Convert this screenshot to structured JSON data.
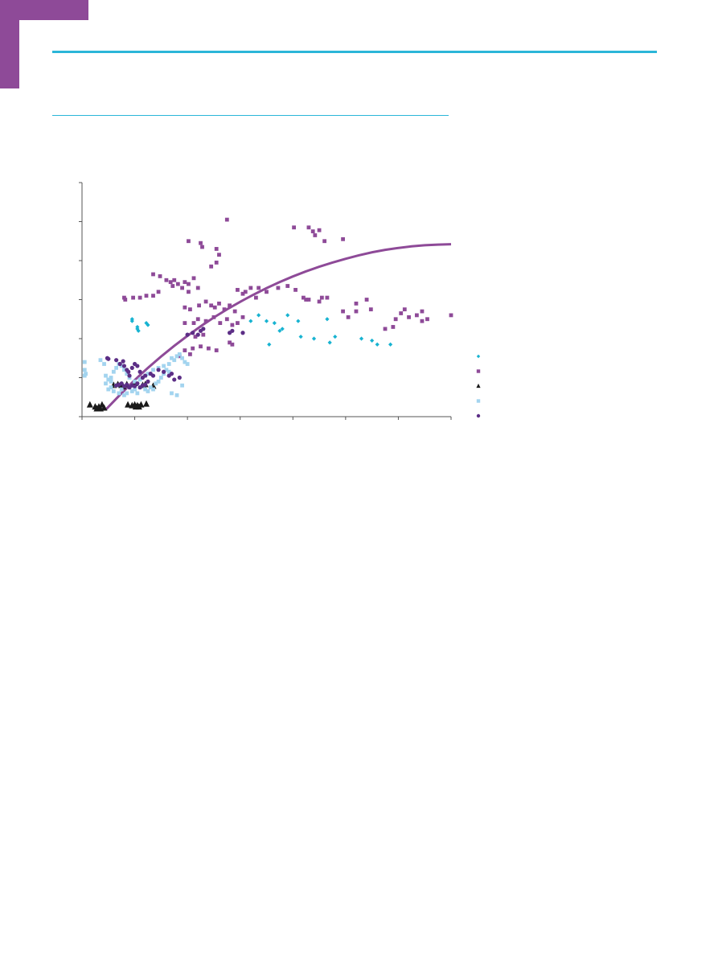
{
  "colors": {
    "accent_purple": "#8e4a98",
    "accent_cyan": "#2bb6d8",
    "series_cyan": "#17b3d1",
    "series_purple": "#8e4a98",
    "series_black": "#1a1a1a",
    "series_lightblue": "#a3d4ef",
    "series_darkpurple": "#5c2e86",
    "axis": "#555555"
  },
  "chart_data": {
    "type": "scatter",
    "xlim": [
      0,
      7
    ],
    "ylim": [
      0,
      6
    ],
    "x_ticks": [
      0,
      1,
      2,
      3,
      4,
      5,
      6,
      7
    ],
    "y_ticks": [
      0,
      1,
      2,
      3,
      4,
      5,
      6
    ],
    "title": "",
    "xlabel": "",
    "ylabel": "",
    "grid": false,
    "legend": "right",
    "series": [
      {
        "marker": "diamond",
        "color": "#17b3d1",
        "points": [
          [
            0.95,
            2.5
          ],
          [
            0.95,
            2.45
          ],
          [
            1.05,
            2.3
          ],
          [
            1.05,
            2.25
          ],
          [
            1.07,
            2.2
          ],
          [
            1.22,
            2.4
          ],
          [
            1.25,
            2.35
          ],
          [
            3.5,
            2.45
          ],
          [
            3.55,
            1.85
          ],
          [
            3.65,
            2.4
          ],
          [
            3.75,
            2.2
          ],
          [
            3.8,
            2.25
          ],
          [
            4.1,
            2.45
          ],
          [
            4.15,
            2.05
          ],
          [
            4.4,
            2.0
          ],
          [
            4.65,
            2.5
          ],
          [
            4.7,
            1.9
          ],
          [
            4.8,
            2.05
          ],
          [
            5.3,
            2.0
          ],
          [
            5.5,
            1.95
          ],
          [
            5.6,
            1.85
          ],
          [
            5.85,
            1.85
          ],
          [
            3.9,
            2.6
          ],
          [
            3.2,
            2.45
          ],
          [
            3.35,
            2.6
          ]
        ]
      },
      {
        "marker": "square",
        "color": "#8e4a98",
        "points": [
          [
            0.8,
            3.05
          ],
          [
            0.82,
            3.0
          ],
          [
            0.97,
            3.05
          ],
          [
            1.1,
            3.05
          ],
          [
            1.22,
            3.1
          ],
          [
            1.35,
            3.1
          ],
          [
            1.45,
            3.2
          ],
          [
            1.35,
            3.65
          ],
          [
            1.48,
            3.6
          ],
          [
            1.6,
            3.5
          ],
          [
            1.68,
            3.45
          ],
          [
            1.72,
            3.35
          ],
          [
            1.75,
            3.5
          ],
          [
            1.82,
            3.4
          ],
          [
            1.95,
            3.45
          ],
          [
            2.02,
            3.4
          ],
          [
            2.12,
            3.55
          ],
          [
            1.9,
            3.3
          ],
          [
            2.02,
            3.2
          ],
          [
            2.2,
            3.3
          ],
          [
            1.95,
            2.8
          ],
          [
            2.05,
            2.75
          ],
          [
            2.22,
            2.85
          ],
          [
            2.35,
            2.95
          ],
          [
            2.45,
            2.85
          ],
          [
            2.52,
            2.8
          ],
          [
            2.6,
            2.9
          ],
          [
            2.7,
            2.75
          ],
          [
            2.8,
            2.85
          ],
          [
            2.9,
            2.7
          ],
          [
            2.2,
            2.5
          ],
          [
            2.35,
            2.45
          ],
          [
            2.5,
            2.55
          ],
          [
            2.62,
            2.4
          ],
          [
            2.75,
            2.5
          ],
          [
            2.85,
            2.35
          ],
          [
            2.95,
            2.4
          ],
          [
            3.05,
            2.55
          ],
          [
            2.12,
            2.4
          ],
          [
            1.95,
            2.4
          ],
          [
            2.02,
            4.5
          ],
          [
            2.25,
            4.45
          ],
          [
            2.28,
            4.35
          ],
          [
            2.45,
            3.85
          ],
          [
            2.55,
            3.95
          ],
          [
            2.6,
            4.15
          ],
          [
            2.55,
            4.3
          ],
          [
            2.75,
            5.05
          ],
          [
            2.95,
            3.25
          ],
          [
            3.05,
            3.15
          ],
          [
            3.2,
            3.3
          ],
          [
            3.35,
            3.3
          ],
          [
            3.5,
            3.2
          ],
          [
            3.3,
            3.05
          ],
          [
            3.1,
            3.2
          ],
          [
            3.72,
            3.3
          ],
          [
            3.9,
            3.35
          ],
          [
            4.05,
            3.25
          ],
          [
            4.2,
            3.05
          ],
          [
            4.3,
            3.0
          ],
          [
            4.5,
            2.95
          ],
          [
            4.55,
            3.05
          ],
          [
            4.25,
            3.0
          ],
          [
            4.02,
            4.85
          ],
          [
            4.3,
            4.85
          ],
          [
            4.38,
            4.75
          ],
          [
            4.42,
            4.65
          ],
          [
            4.5,
            4.78
          ],
          [
            4.6,
            4.5
          ],
          [
            4.95,
            4.55
          ],
          [
            4.65,
            3.05
          ],
          [
            5.05,
            2.55
          ],
          [
            5.2,
            2.9
          ],
          [
            5.4,
            3.0
          ],
          [
            5.48,
            2.75
          ],
          [
            5.9,
            2.3
          ],
          [
            6.05,
            2.65
          ],
          [
            6.12,
            2.75
          ],
          [
            6.2,
            2.55
          ],
          [
            6.35,
            2.6
          ],
          [
            6.45,
            2.45
          ],
          [
            6.55,
            2.5
          ],
          [
            6.45,
            2.7
          ],
          [
            7.0,
            2.6
          ],
          [
            5.2,
            2.7
          ],
          [
            5.75,
            2.25
          ],
          [
            5.95,
            2.5
          ],
          [
            4.95,
            2.7
          ],
          [
            1.95,
            1.7
          ],
          [
            2.1,
            1.75
          ],
          [
            2.25,
            1.8
          ],
          [
            2.4,
            1.75
          ],
          [
            2.55,
            1.7
          ],
          [
            2.8,
            1.9
          ],
          [
            2.85,
            1.85
          ],
          [
            2.05,
            1.6
          ],
          [
            1.85,
            1.55
          ],
          [
            2.15,
            2.05
          ],
          [
            2.3,
            2.1
          ]
        ]
      },
      {
        "marker": "triangle",
        "color": "#1a1a1a",
        "points": [
          [
            0.15,
            0.3
          ],
          [
            0.25,
            0.25
          ],
          [
            0.28,
            0.2
          ],
          [
            0.32,
            0.22
          ],
          [
            0.35,
            0.2
          ],
          [
            0.38,
            0.3
          ],
          [
            0.32,
            0.25
          ],
          [
            0.42,
            0.22
          ],
          [
            0.87,
            0.3
          ],
          [
            0.95,
            0.28
          ],
          [
            1.0,
            0.3
          ],
          [
            1.02,
            0.25
          ],
          [
            1.05,
            0.28
          ],
          [
            1.08,
            0.25
          ],
          [
            1.12,
            0.3
          ],
          [
            1.22,
            0.32
          ],
          [
            0.6,
            0.8
          ],
          [
            0.68,
            0.82
          ],
          [
            0.75,
            0.8
          ],
          [
            0.78,
            0.77
          ],
          [
            0.85,
            0.82
          ],
          [
            1.0,
            0.85
          ],
          [
            1.15,
            0.8
          ],
          [
            1.2,
            0.82
          ],
          [
            1.35,
            0.78
          ]
        ]
      },
      {
        "marker": "square",
        "color": "#a3d4ef",
        "points": [
          [
            0.05,
            1.4
          ],
          [
            0.05,
            1.2
          ],
          [
            0.07,
            1.1
          ],
          [
            0.05,
            1.05
          ],
          [
            0.35,
            1.45
          ],
          [
            0.42,
            1.35
          ],
          [
            0.45,
            0.85
          ],
          [
            0.5,
            0.7
          ],
          [
            0.55,
            0.75
          ],
          [
            0.6,
            0.65
          ],
          [
            0.65,
            0.8
          ],
          [
            0.7,
            0.6
          ],
          [
            0.75,
            0.7
          ],
          [
            0.8,
            0.55
          ],
          [
            0.85,
            0.6
          ],
          [
            0.9,
            0.75
          ],
          [
            0.95,
            0.65
          ],
          [
            1.0,
            0.7
          ],
          [
            1.05,
            0.6
          ],
          [
            1.1,
            0.75
          ],
          [
            1.15,
            0.8
          ],
          [
            1.2,
            0.7
          ],
          [
            1.25,
            0.65
          ],
          [
            1.3,
            0.75
          ],
          [
            1.35,
            0.7
          ],
          [
            1.4,
            0.85
          ],
          [
            1.45,
            0.9
          ],
          [
            1.5,
            1.0
          ],
          [
            1.55,
            1.1
          ],
          [
            1.6,
            1.2
          ],
          [
            1.65,
            1.35
          ],
          [
            1.7,
            1.5
          ],
          [
            1.75,
            1.45
          ],
          [
            1.8,
            1.55
          ],
          [
            1.85,
            1.6
          ],
          [
            1.9,
            1.5
          ],
          [
            1.95,
            1.4
          ],
          [
            2.0,
            1.35
          ],
          [
            1.65,
            1.15
          ],
          [
            1.55,
            1.3
          ],
          [
            1.45,
            1.25
          ],
          [
            1.35,
            1.2
          ],
          [
            1.25,
            1.1
          ],
          [
            1.2,
            1.05
          ],
          [
            1.1,
            0.95
          ],
          [
            1.0,
            0.9
          ],
          [
            0.9,
            1.0
          ],
          [
            0.85,
            1.1
          ],
          [
            0.8,
            1.2
          ],
          [
            0.75,
            1.3
          ],
          [
            0.7,
            1.35
          ],
          [
            0.65,
            1.25
          ],
          [
            0.6,
            1.15
          ],
          [
            0.55,
            1.0
          ],
          [
            0.5,
            0.95
          ],
          [
            0.45,
            1.05
          ],
          [
            1.7,
            0.6
          ],
          [
            1.8,
            0.55
          ],
          [
            1.9,
            0.8
          ],
          [
            0.55,
            0.9
          ]
        ]
      },
      {
        "marker": "circle",
        "color": "#5c2e86",
        "points": [
          [
            0.48,
            1.5
          ],
          [
            0.5,
            1.48
          ],
          [
            0.65,
            1.45
          ],
          [
            0.72,
            1.35
          ],
          [
            0.78,
            1.42
          ],
          [
            0.8,
            1.3
          ],
          [
            0.85,
            1.2
          ],
          [
            0.88,
            1.15
          ],
          [
            0.9,
            1.05
          ],
          [
            0.95,
            1.25
          ],
          [
            1.0,
            1.35
          ],
          [
            1.05,
            1.3
          ],
          [
            1.1,
            1.15
          ],
          [
            1.15,
            1.0
          ],
          [
            1.2,
            1.05
          ],
          [
            1.3,
            1.1
          ],
          [
            1.35,
            1.05
          ],
          [
            1.45,
            1.2
          ],
          [
            1.55,
            1.15
          ],
          [
            1.65,
            1.05
          ],
          [
            1.7,
            1.1
          ],
          [
            1.75,
            0.95
          ],
          [
            1.85,
            1.0
          ],
          [
            0.65,
            0.8
          ],
          [
            0.7,
            0.82
          ],
          [
            0.75,
            0.85
          ],
          [
            0.8,
            0.78
          ],
          [
            0.85,
            0.82
          ],
          [
            0.9,
            0.75
          ],
          [
            0.95,
            0.8
          ],
          [
            1.0,
            0.78
          ],
          [
            1.05,
            0.85
          ],
          [
            1.1,
            0.75
          ],
          [
            1.15,
            0.8
          ],
          [
            1.2,
            0.82
          ],
          [
            1.25,
            0.9
          ],
          [
            2.0,
            2.1
          ],
          [
            2.1,
            2.15
          ],
          [
            2.2,
            2.1
          ],
          [
            2.25,
            2.2
          ],
          [
            2.3,
            2.25
          ],
          [
            2.8,
            2.15
          ],
          [
            2.85,
            2.2
          ],
          [
            3.05,
            2.15
          ]
        ]
      }
    ],
    "trendline": {
      "type": "polynomial",
      "color": "#8e4a98",
      "points": [
        [
          0.45,
          0.18
        ],
        [
          1.0,
          0.95
        ],
        [
          1.5,
          1.55
        ],
        [
          2.0,
          2.08
        ],
        [
          2.5,
          2.55
        ],
        [
          3.0,
          2.95
        ],
        [
          3.5,
          3.3
        ],
        [
          4.0,
          3.6
        ],
        [
          4.5,
          3.85
        ],
        [
          5.0,
          4.05
        ],
        [
          5.5,
          4.22
        ],
        [
          6.0,
          4.33
        ],
        [
          6.5,
          4.4
        ],
        [
          7.0,
          4.42
        ]
      ]
    }
  }
}
